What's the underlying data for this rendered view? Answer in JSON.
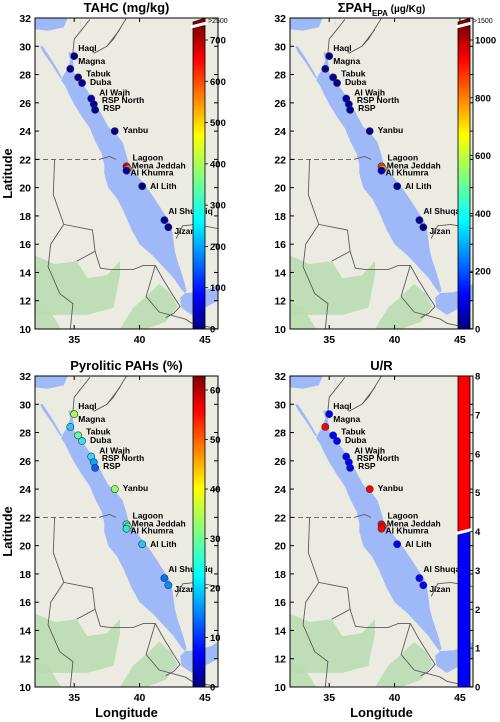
{
  "axes": {
    "xlim": [
      32,
      46
    ],
    "ylim": [
      10,
      32
    ],
    "xticks": [
      "35",
      "40",
      "45"
    ],
    "yticks": [
      "10",
      "12",
      "14",
      "16",
      "18",
      "20",
      "22",
      "24",
      "26",
      "28",
      "30",
      "32"
    ],
    "xlabel": "Longitude",
    "ylabel": "Latitude"
  },
  "colors": {
    "land": "#ecebe2",
    "sea": "#9fb8f7",
    "green_land": "#b7dcb0",
    "border": "#5a5a5a",
    "marker_edge": "#333333"
  },
  "sites": [
    {
      "name": "Haql",
      "lon": 35.0,
      "lat": 29.3
    },
    {
      "name": "Magna",
      "lon": 34.7,
      "lat": 28.4
    },
    {
      "name": "Tabuk",
      "lon": 35.3,
      "lat": 27.8
    },
    {
      "name": "Duba",
      "lon": 35.6,
      "lat": 27.4
    },
    {
      "name": "Al Wajh",
      "lon": 36.3,
      "lat": 26.3
    },
    {
      "name": "RSP North",
      "lon": 36.5,
      "lat": 25.9
    },
    {
      "name": "RSP",
      "lon": 36.6,
      "lat": 25.5
    },
    {
      "name": "Yanbu",
      "lon": 38.1,
      "lat": 24.0
    },
    {
      "name": "Lagoon",
      "lon": 39.0,
      "lat": 21.5
    },
    {
      "name": "Mena Jeddah",
      "lon": 39.1,
      "lat": 21.35
    },
    {
      "name": "Al Khumra",
      "lon": 39.0,
      "lat": 21.2
    },
    {
      "name": "Al Lith",
      "lon": 40.2,
      "lat": 20.1
    },
    {
      "name": "Al Shuqaiq",
      "lon": 41.9,
      "lat": 17.7
    },
    {
      "name": "Jizan",
      "lon": 42.2,
      "lat": 17.2
    }
  ],
  "panels": [
    {
      "title": "TAHC (mg/kg)",
      "colorbar": {
        "ticks": [
          "0",
          "100",
          "200",
          "300",
          "400",
          "500",
          "600",
          "700"
        ],
        "top_label": ">2500",
        "top_color": "#7f0000",
        "scheme": "jet"
      },
      "colors": [
        "#00008f",
        "#0000a0",
        "#000090",
        "#0000a0",
        "#0000b0",
        "#0000a0",
        "#00009a",
        "#00008f",
        "#d00000",
        "#ff6a00",
        "#0000b0",
        "#00009a",
        "#0000a0",
        "#00008f"
      ]
    },
    {
      "title": "ΣPAH",
      "title_sub": "EPA",
      "title_unit": " (µg/Kg)",
      "colorbar": {
        "ticks": [
          "0",
          "200",
          "400",
          "600",
          "800",
          "1000"
        ],
        "top_label": ">1500",
        "top_color": "#7f0000",
        "scheme": "jet"
      },
      "colors": [
        "#00008f",
        "#00009a",
        "#0000a0",
        "#000090",
        "#0000b0",
        "#0000a0",
        "#00009a",
        "#00008f",
        "#ff3c00",
        "#ff9000",
        "#0000b0",
        "#00009a",
        "#0000a0",
        "#00008f"
      ]
    },
    {
      "title": "Pyrolitic PAHs (%)",
      "colorbar": {
        "ticks": [
          "0",
          "10",
          "20",
          "30",
          "40",
          "50",
          "60"
        ],
        "scheme": "jet"
      },
      "colors": [
        "#a8ff50",
        "#22ccff",
        "#5affa0",
        "#30e0ff",
        "#2fd9ff",
        "#10a0ff",
        "#0060ff",
        "#90ff6a",
        "#40f0e0",
        "#60ffa0",
        "#30e8d0",
        "#20c8ff",
        "#0070ff",
        "#0090ff"
      ]
    },
    {
      "title": "U/R",
      "colorbar": {
        "ticks": [
          "0",
          "1",
          "2",
          "3",
          "4",
          "5",
          "6",
          "7",
          "8"
        ],
        "scheme": "split",
        "low_color": "#0000ff",
        "high_color": "#ff0000"
      },
      "colors": [
        "#0000ff",
        "#ff0000",
        "#0000ff",
        "#0000ff",
        "#0000ff",
        "#0000ff",
        "#0000ff",
        "#ff0000",
        "#ff0000",
        "#ff0000",
        "#ff0000",
        "#0000ff",
        "#0000ff",
        "#0000ff"
      ]
    }
  ]
}
